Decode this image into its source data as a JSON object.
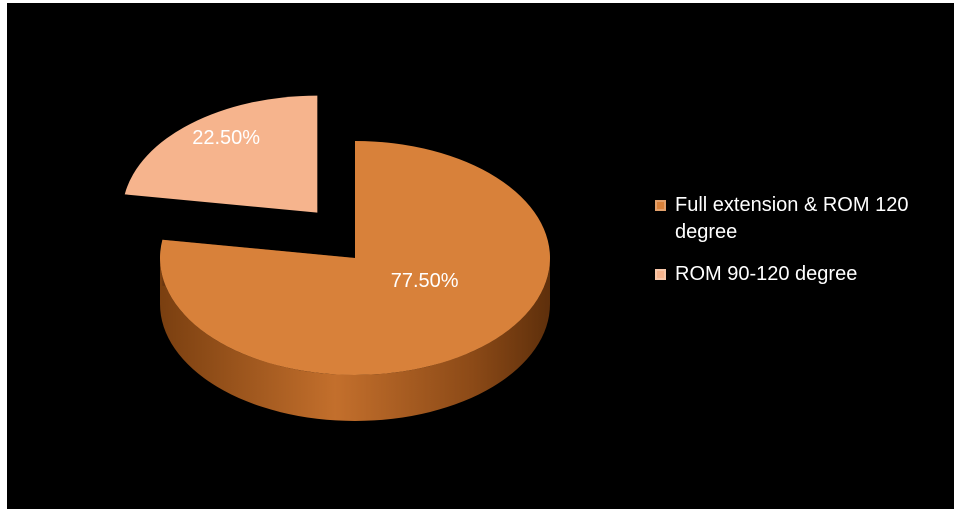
{
  "chart_data": {
    "type": "pie",
    "title": "",
    "categories": [
      "Full extension & ROM 120 degree",
      "ROM 90-120 degree"
    ],
    "values": [
      77.5,
      22.5
    ],
    "data_labels": [
      "77.50%",
      "22.50%"
    ],
    "colors": [
      "#d8813a",
      "#f6b48d"
    ],
    "side_colors": [
      "#8a4a18",
      "#5a4032"
    ],
    "exploded": [
      false,
      true
    ],
    "style": "3d",
    "legend_position": "right"
  },
  "legend": {
    "items": [
      {
        "label": "Full extension & ROM 120 degree",
        "color": "#d8813a"
      },
      {
        "label": "ROM 90-120 degree",
        "color": "#f6b48d"
      }
    ]
  }
}
